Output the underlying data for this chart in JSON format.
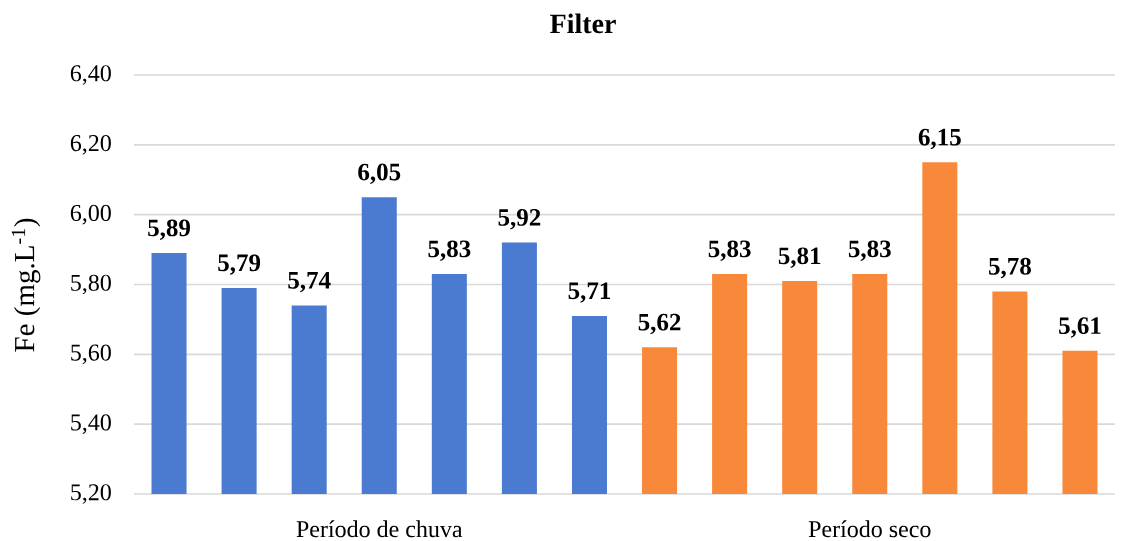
{
  "chart_data": {
    "type": "bar",
    "title": "Filter",
    "ylabel": "Fe (mg.L$^{-1}$)",
    "categories": [
      null,
      null,
      null,
      null,
      null,
      null,
      null,
      null,
      null,
      null,
      null,
      null,
      null,
      null
    ],
    "series": [
      {
        "name": "Período de chuva",
        "color": "#4a7bd0",
        "values": [
          5.89,
          5.79,
          5.74,
          6.05,
          5.83,
          5.92,
          5.71,
          null,
          null,
          null,
          null,
          null,
          null,
          null
        ],
        "value_labels": [
          "5,89",
          "5,79",
          "5,74",
          "6,05",
          "5,83",
          "5,92",
          "5,71",
          null,
          null,
          null,
          null,
          null,
          null,
          null
        ]
      },
      {
        "name": "Período seco",
        "color": "#f8893b",
        "values": [
          null,
          null,
          null,
          null,
          null,
          null,
          null,
          5.62,
          5.83,
          5.81,
          5.83,
          6.15,
          5.78,
          5.61
        ],
        "value_labels": [
          null,
          null,
          null,
          null,
          null,
          null,
          null,
          "5,62",
          "5,83",
          "5,81",
          "5,83",
          "6,15",
          "5,78",
          "5,61"
        ]
      }
    ],
    "stacked": true,
    "ylim": [
      5.2,
      6.4
    ],
    "yticks": [
      {
        "value": 5.2,
        "label": "5,20"
      },
      {
        "value": 5.4,
        "label": "5,40"
      },
      {
        "value": 5.6,
        "label": "5,60"
      },
      {
        "value": 5.8,
        "label": "5,80"
      },
      {
        "value": 6.0,
        "label": "6,00"
      },
      {
        "value": 6.2,
        "label": "6,20"
      },
      {
        "value": 6.4,
        "label": "6,40"
      }
    ],
    "grid": "y"
  }
}
